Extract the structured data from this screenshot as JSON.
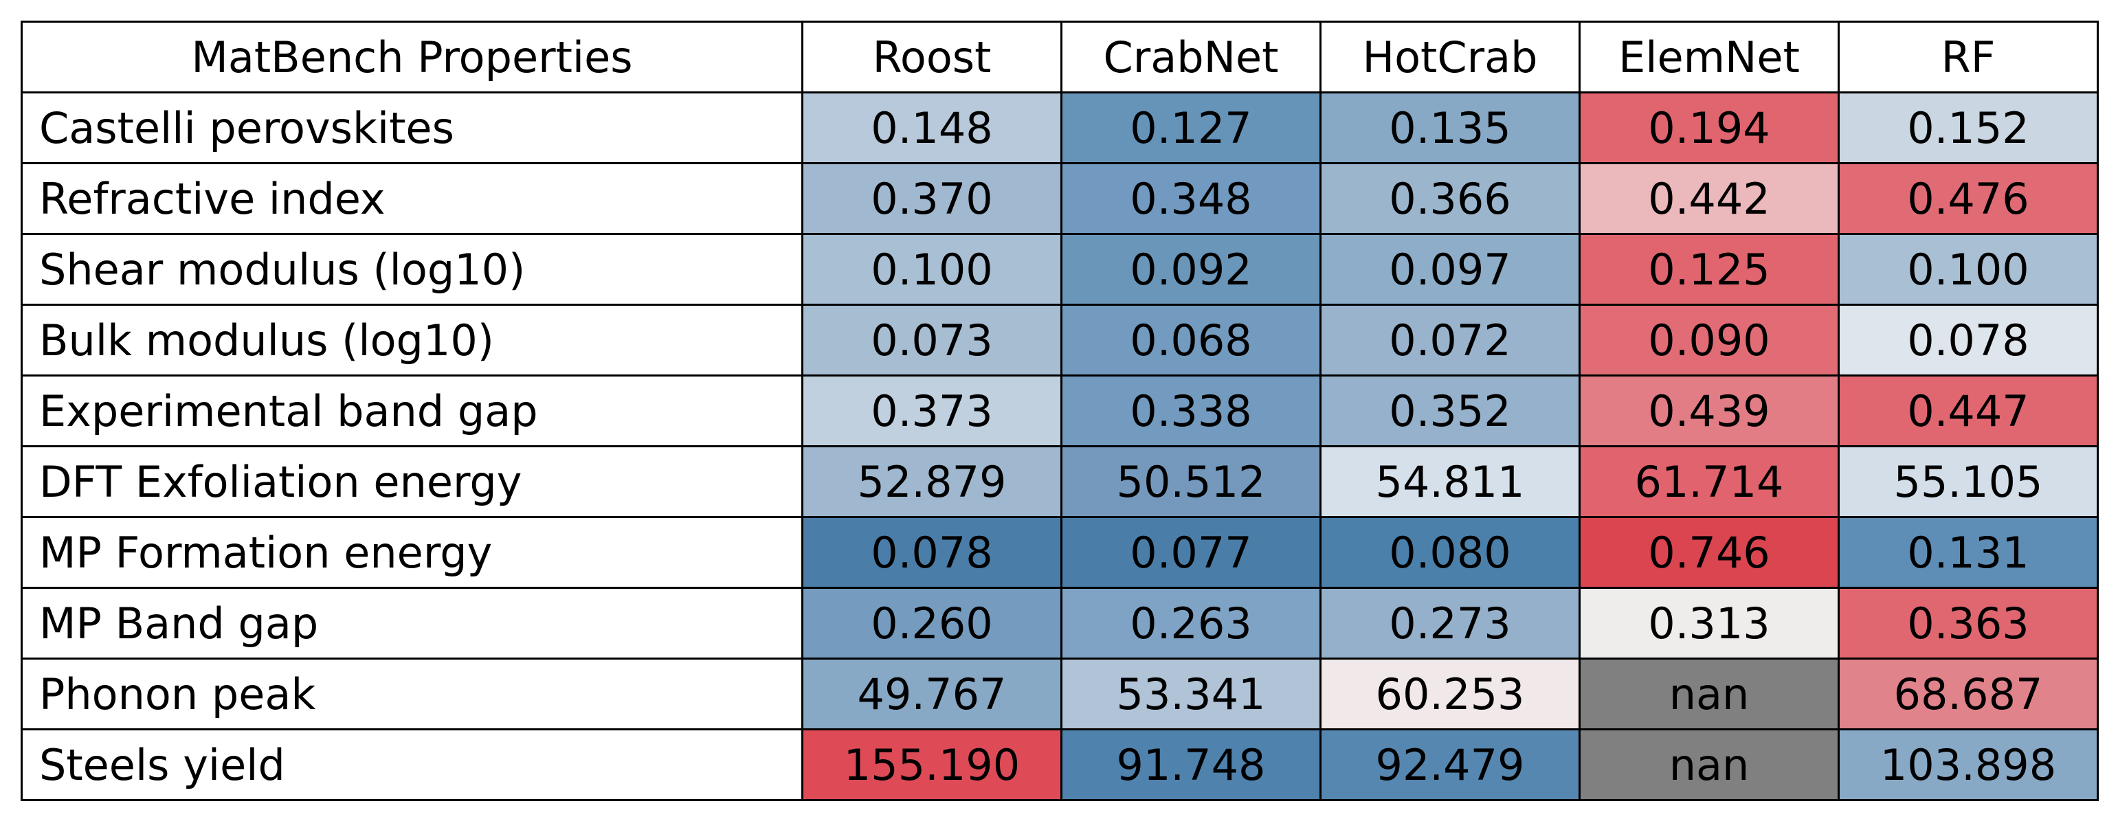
{
  "chart_data": {
    "type": "table",
    "header_label": "MatBench Properties",
    "columns": [
      "Roost",
      "CrabNet",
      "HotCrab",
      "ElemNet",
      "RF"
    ],
    "rows": [
      {
        "name": "Castelli perovskites",
        "values": [
          "0.148",
          "0.127",
          "0.135",
          "0.194",
          "0.152"
        ],
        "colors": [
          "#b7c9da",
          "#6693b8",
          "#87a9c6",
          "#e0656f",
          "#cad6e2"
        ]
      },
      {
        "name": "Refractive index",
        "values": [
          "0.370",
          "0.348",
          "0.366",
          "0.442",
          "0.476"
        ],
        "colors": [
          "#a1b9d0",
          "#7299bf",
          "#9bb5cd",
          "#ebb8bc",
          "#e06b74"
        ]
      },
      {
        "name": "Shear modulus (log10)",
        "values": [
          "0.100",
          "0.092",
          "0.097",
          "0.125",
          "0.100"
        ],
        "colors": [
          "#a9bfd3",
          "#6a96ba",
          "#8dadc8",
          "#e0656f",
          "#a9bfd3"
        ]
      },
      {
        "name": "Bulk modulus (log10)",
        "values": [
          "0.073",
          "0.068",
          "0.072",
          "0.090",
          "0.078"
        ],
        "colors": [
          "#a7bdd2",
          "#729bbf",
          "#99b3cc",
          "#e26c75",
          "#dfe5ec"
        ]
      },
      {
        "name": "Experimental band gap",
        "values": [
          "0.373",
          "0.338",
          "0.352",
          "0.439",
          "0.447"
        ],
        "colors": [
          "#c0d0df",
          "#739bbf",
          "#96b1cb",
          "#e27d85",
          "#e06770"
        ]
      },
      {
        "name": "DFT Exfoliation energy",
        "values": [
          "52.879",
          "50.512",
          "54.811",
          "61.714",
          "55.105"
        ],
        "colors": [
          "#9fb8cf",
          "#7499bd",
          "#d6e0ea",
          "#e0636d",
          "#d3dee8"
        ]
      },
      {
        "name": "MP Formation energy",
        "values": [
          "0.078",
          "0.077",
          "0.080",
          "0.746",
          "0.131"
        ],
        "colors": [
          "#4a7ea9",
          "#4a7ea9",
          "#4b80ab",
          "#db4550",
          "#5e8db5"
        ]
      },
      {
        "name": "MP Band gap",
        "values": [
          "0.260",
          "0.263",
          "0.273",
          "0.313",
          "0.363"
        ],
        "colors": [
          "#759cbf",
          "#7fa3c4",
          "#95b0ca",
          "#efecec",
          "#e06770"
        ]
      },
      {
        "name": "Phonon peak",
        "values": [
          "49.767",
          "53.341",
          "60.253",
          "nan",
          "68.687"
        ],
        "colors": [
          "#87a9c6",
          "#b1c4d7",
          "#f1e8e9",
          "#808080",
          "#e1838b"
        ]
      },
      {
        "name": "Steels yield",
        "values": [
          "155.190",
          "91.748",
          "92.479",
          "nan",
          "103.898"
        ],
        "colors": [
          "#de4b57",
          "#4f82ad",
          "#5587b0",
          "#808080",
          "#88a9c6"
        ]
      }
    ]
  }
}
